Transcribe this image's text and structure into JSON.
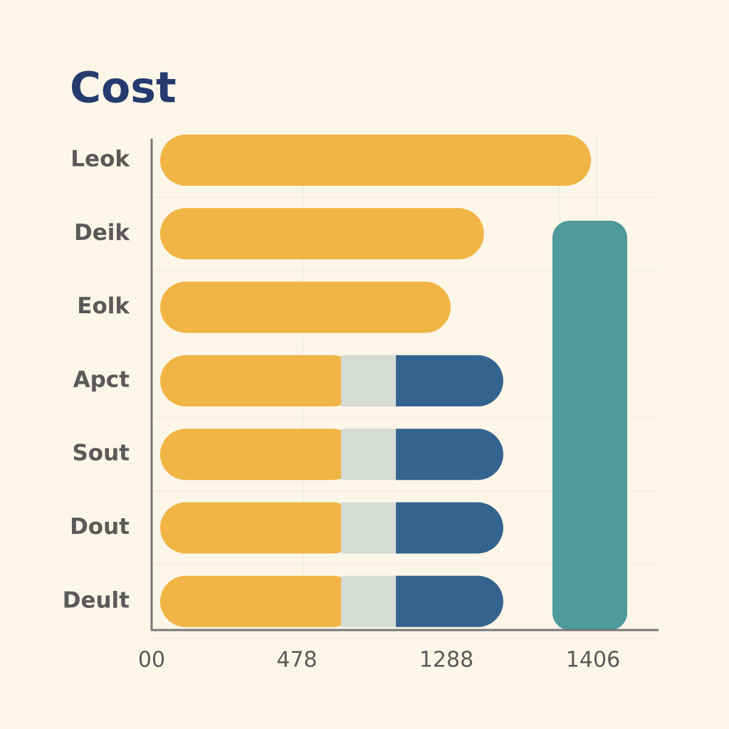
{
  "chart_data": {
    "type": "stacked-bar-horizontal",
    "title": "Cost",
    "categories": [
      "Leok",
      "Deik",
      "Eolk",
      "Apct",
      "Sout",
      "Dout",
      "Deult"
    ],
    "series": [
      {
        "color": "#f0b545",
        "values": [
          1387,
          1049,
          944,
          652,
          652,
          652,
          652
        ]
      },
      {
        "color": "#d6dbd6",
        "values": [
          null,
          null,
          null,
          119,
          119,
          119,
          119
        ]
      },
      {
        "color": "#35638f",
        "values": [
          null,
          null,
          null,
          339,
          339,
          339,
          339
        ]
      }
    ],
    "xlim": [
      0,
      1600
    ],
    "xticks": [
      {
        "value": 0,
        "label": "00"
      },
      478,
      1288,
      1406
    ],
    "grid": true
  }
}
